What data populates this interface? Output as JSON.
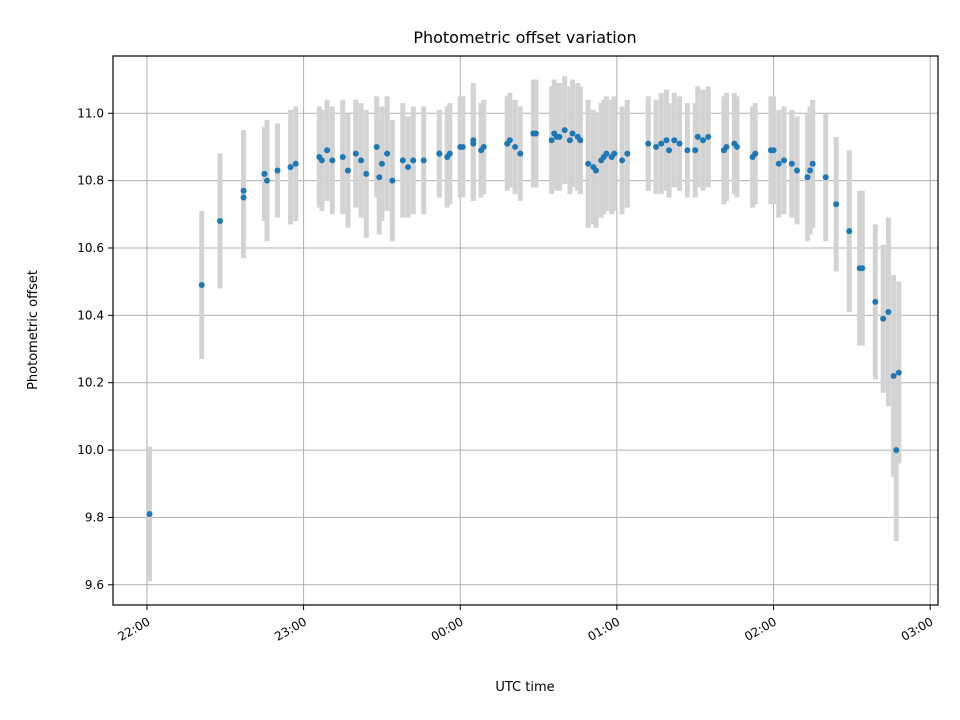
{
  "chart_data": {
    "type": "scatter",
    "title": "Photometric offset variation",
    "xlabel": "UTC time",
    "ylabel": "Photometric offset",
    "x_tick_labels": [
      "22:00",
      "23:00",
      "00:00",
      "01:00",
      "02:00",
      "03:00"
    ],
    "x_tick_times": [
      "22:00",
      "23:00",
      "24:00",
      "25:00",
      "26:00",
      "27:00"
    ],
    "y_ticks": [
      9.6,
      9.8,
      10.0,
      10.2,
      10.4,
      10.6,
      10.8,
      11.0
    ],
    "y_tick_labels": [
      "9.6",
      "9.8",
      "10.0",
      "10.2",
      "10.4",
      "10.6",
      "10.8",
      "11.0"
    ],
    "xlim": [
      "21:47",
      "27:03"
    ],
    "ylim": [
      9.54,
      11.17
    ],
    "grid": true,
    "marker_color": "#1f77b4",
    "errorbar_color": "#d3d3d3",
    "series": [
      {
        "x": [
          "22:01",
          "22:21",
          "22:28",
          "22:37",
          "22:37",
          "22:45",
          "22:46",
          "22:50",
          "22:55",
          "22:57",
          "23:06",
          "23:07",
          "23:09",
          "23:11",
          "23:15",
          "23:17",
          "23:20",
          "23:22",
          "23:24",
          "23:28",
          "23:29",
          "23:30",
          "23:32",
          "23:34",
          "23:38",
          "23:40",
          "23:42",
          "23:46",
          "23:52",
          "23:52",
          "23:55",
          "23:56",
          "24:00",
          "24:01",
          "24:05",
          "24:05",
          "24:08",
          "24:09",
          "24:18",
          "24:19",
          "24:21",
          "24:23",
          "24:28",
          "24:29",
          "24:35",
          "24:36",
          "24:37",
          "24:38",
          "24:40",
          "24:42",
          "24:43",
          "24:45",
          "24:46",
          "24:49",
          "24:51",
          "24:52",
          "24:54",
          "24:55",
          "24:56",
          "24:58",
          "24:59",
          "25:02",
          "25:04",
          "25:12",
          "25:15",
          "25:17",
          "25:19",
          "25:20",
          "25:22",
          "25:24",
          "25:27",
          "25:30",
          "25:31",
          "25:33",
          "25:35",
          "25:41",
          "25:42",
          "25:45",
          "25:46",
          "25:52",
          "25:53",
          "25:59",
          "26:00",
          "26:02",
          "26:04",
          "26:07",
          "26:09",
          "26:13",
          "26:14",
          "26:15",
          "26:20",
          "26:24",
          "26:29",
          "26:33",
          "26:34",
          "26:39",
          "26:42",
          "26:44",
          "26:46",
          "26:47"
        ],
        "y": [
          9.81,
          10.49,
          10.68,
          10.75,
          10.77,
          10.82,
          10.8,
          10.83,
          10.84,
          10.85,
          10.87,
          10.86,
          10.89,
          10.86,
          10.87,
          10.83,
          10.88,
          10.86,
          10.82,
          10.9,
          10.81,
          10.85,
          10.88,
          10.8,
          10.86,
          10.84,
          10.86,
          10.86,
          10.88,
          10.88,
          10.87,
          10.88,
          10.9,
          10.9,
          10.92,
          10.91,
          10.89,
          10.9,
          10.91,
          10.92,
          10.9,
          10.88,
          10.94,
          10.94,
          10.92,
          10.94,
          10.93,
          10.93,
          10.95,
          10.92,
          10.94,
          10.93,
          10.92,
          10.85,
          10.84,
          10.83,
          10.86,
          10.87,
          10.88,
          10.87,
          10.88,
          10.86,
          10.88,
          10.91,
          10.9,
          10.91,
          10.92,
          10.89,
          10.92,
          10.91,
          10.89,
          10.89,
          10.93,
          10.92,
          10.93,
          10.89,
          10.9,
          10.91,
          10.9,
          10.87,
          10.88,
          10.89,
          10.89,
          10.85,
          10.86,
          10.85,
          10.83,
          10.81,
          10.83,
          10.85,
          10.81,
          10.73,
          10.65,
          10.54,
          10.54,
          10.44,
          10.39,
          10.41,
          10.22,
          10.0
        ],
        "yerr": [
          0.2,
          0.22,
          0.2,
          0.18,
          0.18,
          0.14,
          0.18,
          0.14,
          0.17,
          0.17,
          0.15,
          0.15,
          0.15,
          0.16,
          0.17,
          0.17,
          0.16,
          0.17,
          0.19,
          0.15,
          0.17,
          0.17,
          0.17,
          0.18,
          0.17,
          0.15,
          0.16,
          0.16,
          0.13,
          0.13,
          0.15,
          0.15,
          0.15,
          0.15,
          0.17,
          0.17,
          0.14,
          0.14,
          0.14,
          0.14,
          0.14,
          0.14,
          0.16,
          0.16,
          0.16,
          0.16,
          0.16,
          0.16,
          0.16,
          0.16,
          0.16,
          0.16,
          0.16,
          0.19,
          0.17,
          0.17,
          0.17,
          0.17,
          0.17,
          0.17,
          0.17,
          0.16,
          0.16,
          0.14,
          0.14,
          0.15,
          0.15,
          0.14,
          0.14,
          0.14,
          0.14,
          0.14,
          0.15,
          0.15,
          0.15,
          0.16,
          0.16,
          0.15,
          0.15,
          0.15,
          0.15,
          0.16,
          0.16,
          0.16,
          0.16,
          0.16,
          0.16,
          0.19,
          0.19,
          0.19,
          0.19,
          0.2,
          0.24,
          0.23,
          0.23,
          0.23,
          0.22,
          0.28,
          0.3,
          0.27
        ]
      },
      {
        "x": [
          "26:48"
        ],
        "y": [
          10.23
        ],
        "yerr": [
          0.27
        ]
      }
    ]
  }
}
